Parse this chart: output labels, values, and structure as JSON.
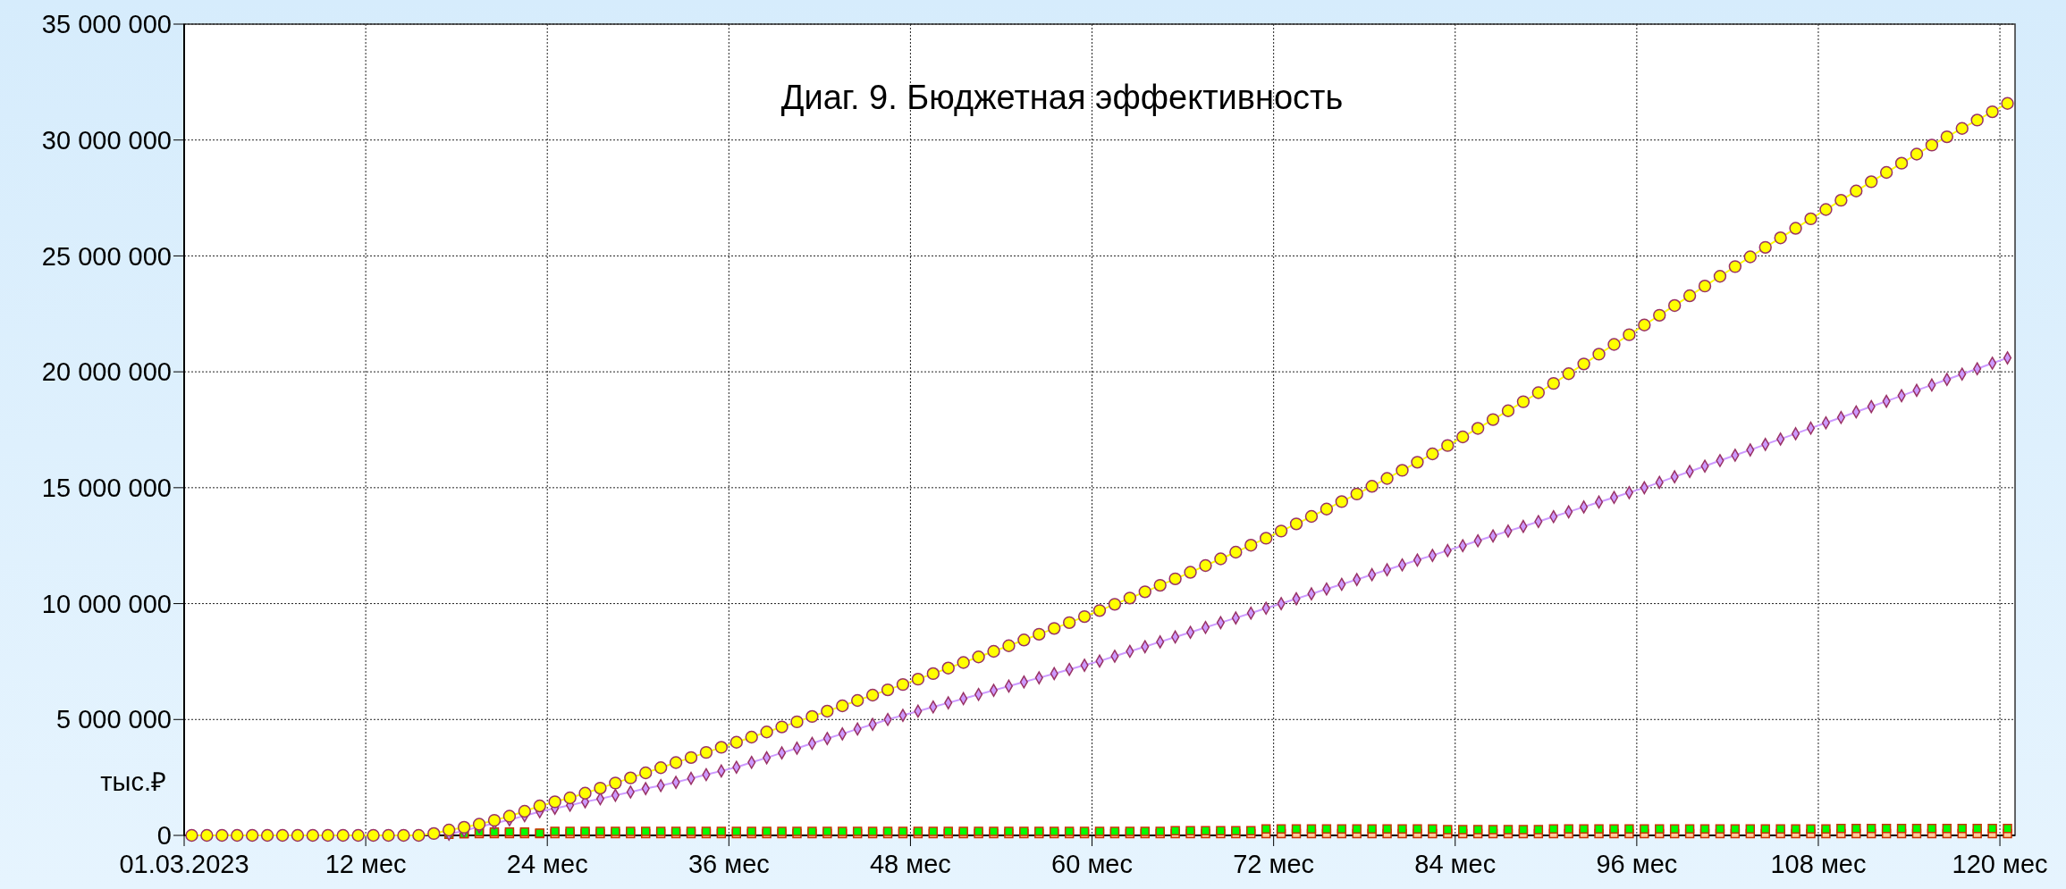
{
  "chart_data": {
    "type": "line",
    "title": "Диаг. 9. Бюджетная эффективность",
    "ylabel": "тыс.₽",
    "x": [
      0.5,
      1.5,
      2.5,
      3.5,
      4.5,
      5.5,
      6.5,
      7.5,
      8.5,
      9.5,
      10.5,
      11.5,
      12.5,
      13.5,
      14.5,
      15.5,
      16.5,
      17.5,
      18.5,
      19.5,
      20.5,
      21.5,
      22.5,
      23.5,
      24.5,
      25.5,
      26.5,
      27.5,
      28.5,
      29.5,
      30.5,
      31.5,
      32.5,
      33.5,
      34.5,
      35.5,
      36.5,
      37.5,
      38.5,
      39.5,
      40.5,
      41.5,
      42.5,
      43.5,
      44.5,
      45.5,
      46.5,
      47.5,
      48.5,
      49.5,
      50.5,
      51.5,
      52.5,
      53.5,
      54.5,
      55.5,
      56.5,
      57.5,
      58.5,
      59.5,
      60.5,
      61.5,
      62.5,
      63.5,
      64.5,
      65.5,
      66.5,
      67.5,
      68.5,
      69.5,
      70.5,
      71.5,
      72.5,
      73.5,
      74.5,
      75.5,
      76.5,
      77.5,
      78.5,
      79.5,
      80.5,
      81.5,
      82.5,
      83.5,
      84.5,
      85.5,
      86.5,
      87.5,
      88.5,
      89.5,
      90.5,
      91.5,
      92.5,
      93.5,
      94.5,
      95.5,
      96.5,
      97.5,
      98.5,
      99.5,
      100.5,
      101.5,
      102.5,
      103.5,
      104.5,
      105.5,
      106.5,
      107.5,
      108.5,
      109.5,
      110.5,
      111.5,
      112.5,
      113.5,
      114.5,
      115.5,
      116.5,
      117.5,
      118.5,
      119.5,
      120.5
    ],
    "series": [
      {
        "type": "scatter",
        "marker": "square",
        "color": "#ffcc99",
        "values": [
          null,
          null,
          null,
          null,
          null,
          null,
          null,
          null,
          null,
          null,
          null,
          null,
          null,
          null,
          null,
          null,
          null,
          null,
          80000,
          80000,
          80000,
          80000,
          80000,
          80000,
          80000,
          80000,
          80000,
          80000,
          80000,
          80000,
          80000,
          80000,
          80000,
          80000,
          80000,
          80000,
          80000,
          80000,
          80000,
          80000,
          80000,
          80000,
          80000,
          80000,
          80000,
          80000,
          80000,
          80000,
          80000,
          80000,
          80000,
          80000,
          80000,
          80000,
          80000,
          80000,
          80000,
          80000,
          80000,
          80000,
          80000,
          80000,
          80000,
          80000,
          80000,
          80000,
          80000,
          80000,
          80000,
          80000,
          80000,
          80000,
          80000,
          80000,
          80000,
          80000,
          80000,
          80000,
          80000,
          80000,
          80000,
          80000,
          80000,
          80000,
          80000,
          80000,
          80000,
          80000,
          80000,
          80000,
          80000,
          80000,
          80000,
          80000,
          80000,
          80000,
          80000,
          80000,
          80000,
          80000,
          80000,
          80000,
          80000,
          80000,
          80000,
          80000,
          80000,
          80000,
          80000,
          80000,
          80000,
          80000,
          80000,
          80000,
          80000,
          80000,
          80000,
          80000,
          80000,
          80000,
          80000
        ]
      },
      {
        "type": "scatter",
        "marker": "square",
        "color": "#00ff00",
        "values": [
          null,
          null,
          null,
          null,
          null,
          null,
          null,
          null,
          null,
          null,
          null,
          null,
          null,
          null,
          null,
          null,
          null,
          50000,
          80000,
          150000,
          150000,
          150000,
          150000,
          100000,
          170000,
          170000,
          170000,
          170000,
          170000,
          170000,
          170000,
          170000,
          170000,
          170000,
          170000,
          170000,
          170000,
          170000,
          170000,
          170000,
          170000,
          170000,
          170000,
          170000,
          170000,
          170000,
          170000,
          170000,
          170000,
          170000,
          170000,
          170000,
          170000,
          170000,
          170000,
          170000,
          170000,
          170000,
          170000,
          170000,
          170000,
          170000,
          170000,
          170000,
          170000,
          200000,
          200000,
          200000,
          200000,
          200000,
          200000,
          280000,
          280000,
          280000,
          280000,
          280000,
          280000,
          280000,
          280000,
          280000,
          280000,
          280000,
          280000,
          250000,
          250000,
          250000,
          250000,
          250000,
          250000,
          250000,
          280000,
          280000,
          280000,
          280000,
          280000,
          280000,
          280000,
          280000,
          280000,
          280000,
          280000,
          280000,
          280000,
          280000,
          280000,
          280000,
          280000,
          280000,
          280000,
          300000,
          300000,
          300000,
          300000,
          300000,
          300000,
          300000,
          300000,
          300000,
          300000,
          300000,
          300000
        ]
      },
      {
        "marker": "diamond",
        "color": "#cc99ff",
        "values": [
          null,
          null,
          null,
          null,
          null,
          null,
          null,
          null,
          null,
          null,
          null,
          null,
          null,
          null,
          null,
          null,
          null,
          50000,
          200000,
          370000,
          520000,
          670000,
          850000,
          1020000,
          1170000,
          1300000,
          1450000,
          1580000,
          1730000,
          1870000,
          2020000,
          2150000,
          2290000,
          2460000,
          2620000,
          2780000,
          2940000,
          3150000,
          3350000,
          3560000,
          3760000,
          3970000,
          4180000,
          4380000,
          4590000,
          4790000,
          5000000,
          5180000,
          5360000,
          5540000,
          5720000,
          5900000,
          6080000,
          6260000,
          6440000,
          6620000,
          6800000,
          6980000,
          7160000,
          7340000,
          7520000,
          7730000,
          7940000,
          8140000,
          8350000,
          8560000,
          8760000,
          8970000,
          9180000,
          9380000,
          9590000,
          9800000,
          10000000,
          10210000,
          10420000,
          10630000,
          10830000,
          11040000,
          11250000,
          11460000,
          11670000,
          11880000,
          12080000,
          12290000,
          12500000,
          12710000,
          12920000,
          13130000,
          13330000,
          13540000,
          13750000,
          13960000,
          14170000,
          14380000,
          14580000,
          14790000,
          15000000,
          15230000,
          15470000,
          15700000,
          15930000,
          16170000,
          16400000,
          16630000,
          16870000,
          17100000,
          17330000,
          17570000,
          17800000,
          18030000,
          18270000,
          18500000,
          18730000,
          18970000,
          19200000,
          19430000,
          19670000,
          19900000,
          20130000,
          20370000,
          20600000
        ]
      },
      {
        "marker": "circle",
        "color": "#ffff00",
        "values": [
          0,
          0,
          0,
          0,
          0,
          0,
          0,
          0,
          0,
          0,
          0,
          0,
          0,
          0,
          0,
          0,
          80000,
          230000,
          350000,
          480000,
          650000,
          830000,
          1040000,
          1270000,
          1450000,
          1620000,
          1820000,
          2040000,
          2260000,
          2480000,
          2700000,
          2920000,
          3140000,
          3360000,
          3580000,
          3800000,
          4020000,
          4240000,
          4460000,
          4680000,
          4900000,
          5130000,
          5360000,
          5590000,
          5820000,
          6050000,
          6280000,
          6510000,
          6740000,
          6980000,
          7220000,
          7460000,
          7700000,
          7940000,
          8180000,
          8430000,
          8680000,
          8930000,
          9180000,
          9440000,
          9700000,
          9970000,
          10240000,
          10510000,
          10790000,
          11070000,
          11350000,
          11640000,
          11930000,
          12220000,
          12520000,
          12820000,
          13130000,
          13440000,
          13760000,
          14080000,
          14400000,
          14730000,
          15060000,
          15400000,
          15750000,
          16100000,
          16460000,
          16820000,
          17190000,
          17560000,
          17940000,
          18320000,
          18710000,
          19100000,
          19500000,
          19920000,
          20340000,
          20760000,
          21180000,
          21600000,
          22020000,
          22440000,
          22860000,
          23280000,
          23700000,
          24120000,
          24540000,
          24960000,
          25370000,
          25780000,
          26190000,
          26600000,
          27000000,
          27400000,
          27800000,
          28200000,
          28600000,
          29000000,
          29390000,
          29780000,
          30140000,
          30500000,
          30860000,
          31220000,
          31580000
        ]
      }
    ],
    "xlim": [
      0,
      121
    ],
    "xticks": [
      {
        "value": 0,
        "label": "01.03.2023"
      },
      {
        "value": 12,
        "label": "12 мес"
      },
      {
        "value": 24,
        "label": "24 мес"
      },
      {
        "value": 36,
        "label": "36 мес"
      },
      {
        "value": 48,
        "label": "48 мес"
      },
      {
        "value": 60,
        "label": "60 мес"
      },
      {
        "value": 72,
        "label": "72 мес"
      },
      {
        "value": 84,
        "label": "84 мес"
      },
      {
        "value": 96,
        "label": "96 мес"
      },
      {
        "value": 108,
        "label": "108 мес"
      },
      {
        "value": 120,
        "label": "120 мес"
      }
    ],
    "ylim": [
      0,
      35000000
    ],
    "yticks": [
      {
        "value": 0,
        "label": "0"
      },
      {
        "value": 5000000,
        "label": "5 000 000"
      },
      {
        "value": 10000000,
        "label": "10 000 000"
      },
      {
        "value": 15000000,
        "label": "15 000 000"
      },
      {
        "value": 20000000,
        "label": "20 000 000"
      },
      {
        "value": 25000000,
        "label": "25 000 000"
      },
      {
        "value": 30000000,
        "label": "30 000 000"
      },
      {
        "value": 35000000,
        "label": "35 000 000"
      }
    ],
    "grid": true
  }
}
